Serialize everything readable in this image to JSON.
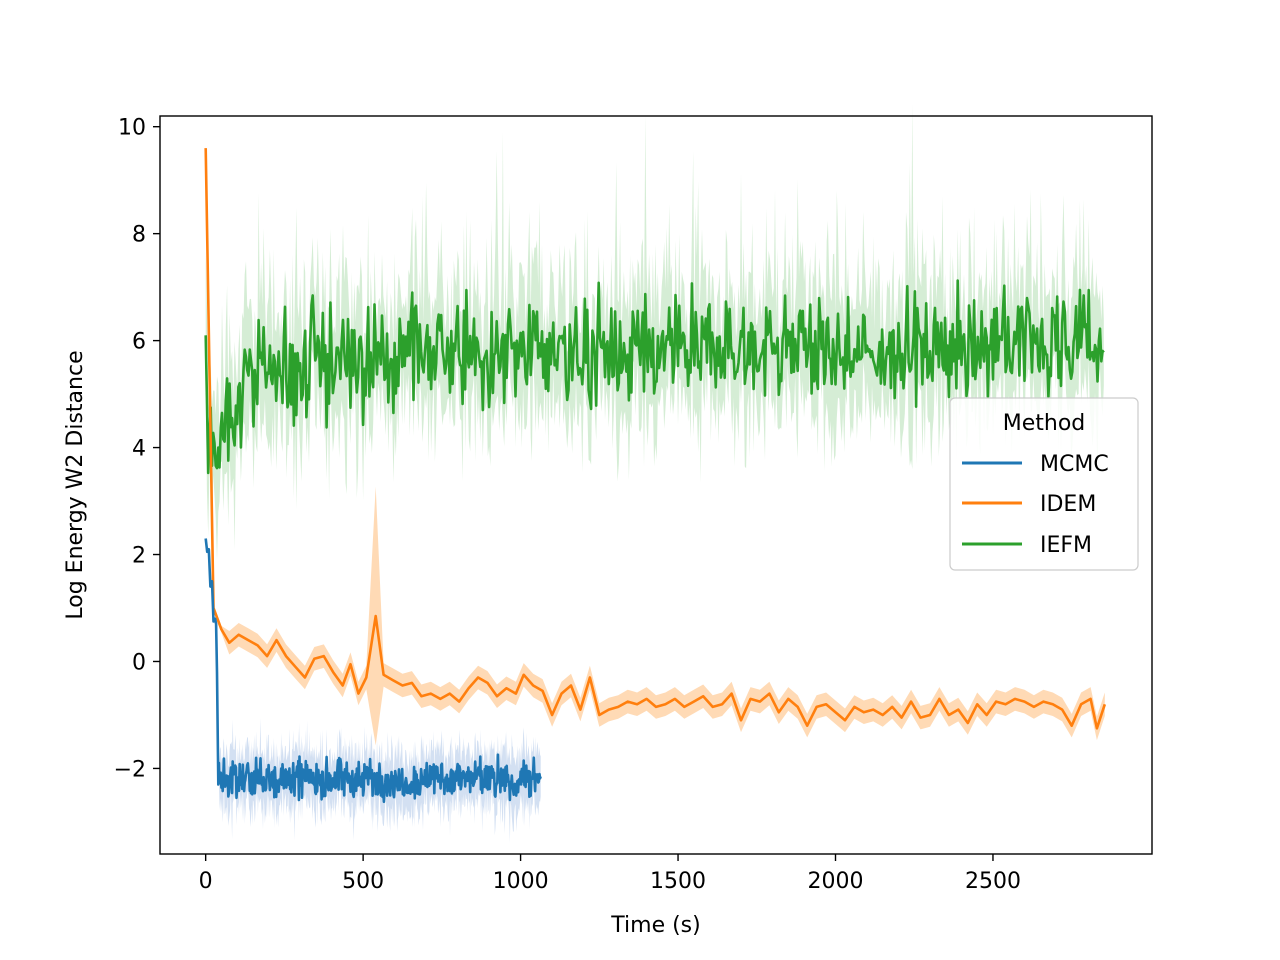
{
  "chart_data": {
    "type": "line",
    "title": "",
    "xlabel": "Time (s)",
    "ylabel": "Log Energy W2 Distance",
    "xlim": [
      -145,
      3005
    ],
    "ylim": [
      -3.6,
      10.2
    ],
    "xticks": [
      0,
      500,
      1000,
      1500,
      2000,
      2500
    ],
    "yticks": [
      -2,
      0,
      2,
      4,
      6,
      8,
      10
    ],
    "xtick_labels": [
      "0",
      "500",
      "1000",
      "1500",
      "2000",
      "2500"
    ],
    "ytick_labels": [
      "−2",
      "0",
      "2",
      "4",
      "6",
      "8",
      "10"
    ],
    "grid": false,
    "legend": {
      "title": "Method",
      "placement": "center-right"
    },
    "series": [
      {
        "name": "MCMC",
        "color": "#1f77b4",
        "band_color": "#aec7e8",
        "description": "steps down from ~2.3 to ~-2.2 by t=40s, then noisy plateau until ~1065s",
        "points": [
          [
            0,
            2.3
          ],
          [
            5,
            2.05
          ],
          [
            10,
            2.1
          ],
          [
            15,
            1.4
          ],
          [
            20,
            1.5
          ],
          [
            25,
            0.75
          ],
          [
            30,
            0.8
          ],
          [
            33,
            0.7
          ],
          [
            36,
            -0.2
          ],
          [
            40,
            -2.3
          ]
        ],
        "plateau": {
          "x_start": 40,
          "x_end": 1065,
          "mean": -2.2,
          "noise": 0.22,
          "band": 0.35
        }
      },
      {
        "name": "IDEM",
        "color": "#ff7f0e",
        "band_color": "#ffbb78",
        "points": [
          [
            0,
            9.6
          ],
          [
            25,
            1.0
          ],
          [
            50,
            0.6
          ],
          [
            75,
            0.35
          ],
          [
            105,
            0.5
          ],
          [
            135,
            0.4
          ],
          [
            165,
            0.3
          ],
          [
            195,
            0.1
          ],
          [
            225,
            0.4
          ],
          [
            255,
            0.1
          ],
          [
            285,
            -0.1
          ],
          [
            315,
            -0.3
          ],
          [
            345,
            0.05
          ],
          [
            375,
            0.1
          ],
          [
            405,
            -0.2
          ],
          [
            435,
            -0.45
          ],
          [
            460,
            -0.05
          ],
          [
            485,
            -0.6
          ],
          [
            510,
            -0.3
          ],
          [
            540,
            0.85
          ],
          [
            565,
            -0.25
          ],
          [
            595,
            -0.35
          ],
          [
            625,
            -0.45
          ],
          [
            655,
            -0.4
          ],
          [
            685,
            -0.65
          ],
          [
            715,
            -0.6
          ],
          [
            745,
            -0.7
          ],
          [
            775,
            -0.6
          ],
          [
            805,
            -0.75
          ],
          [
            835,
            -0.5
          ],
          [
            865,
            -0.3
          ],
          [
            895,
            -0.4
          ],
          [
            925,
            -0.65
          ],
          [
            955,
            -0.5
          ],
          [
            985,
            -0.6
          ],
          [
            1010,
            -0.25
          ],
          [
            1040,
            -0.45
          ],
          [
            1070,
            -0.55
          ],
          [
            1100,
            -1.0
          ],
          [
            1130,
            -0.6
          ],
          [
            1160,
            -0.45
          ],
          [
            1190,
            -0.9
          ],
          [
            1220,
            -0.3
          ],
          [
            1250,
            -1.0
          ],
          [
            1280,
            -0.9
          ],
          [
            1310,
            -0.85
          ],
          [
            1340,
            -0.75
          ],
          [
            1370,
            -0.8
          ],
          [
            1400,
            -0.7
          ],
          [
            1430,
            -0.85
          ],
          [
            1460,
            -0.8
          ],
          [
            1490,
            -0.7
          ],
          [
            1520,
            -0.85
          ],
          [
            1550,
            -0.75
          ],
          [
            1580,
            -0.65
          ],
          [
            1610,
            -0.85
          ],
          [
            1640,
            -0.8
          ],
          [
            1670,
            -0.6
          ],
          [
            1700,
            -1.1
          ],
          [
            1730,
            -0.7
          ],
          [
            1760,
            -0.75
          ],
          [
            1790,
            -0.6
          ],
          [
            1820,
            -0.95
          ],
          [
            1850,
            -0.7
          ],
          [
            1880,
            -0.85
          ],
          [
            1910,
            -1.2
          ],
          [
            1940,
            -0.85
          ],
          [
            1970,
            -0.8
          ],
          [
            2000,
            -0.95
          ],
          [
            2030,
            -1.1
          ],
          [
            2060,
            -0.85
          ],
          [
            2090,
            -0.95
          ],
          [
            2120,
            -0.9
          ],
          [
            2150,
            -1.0
          ],
          [
            2180,
            -0.85
          ],
          [
            2210,
            -1.05
          ],
          [
            2240,
            -0.75
          ],
          [
            2270,
            -1.05
          ],
          [
            2300,
            -1.0
          ],
          [
            2330,
            -0.7
          ],
          [
            2360,
            -1.0
          ],
          [
            2390,
            -0.9
          ],
          [
            2420,
            -1.15
          ],
          [
            2450,
            -0.8
          ],
          [
            2480,
            -1.0
          ],
          [
            2510,
            -0.75
          ],
          [
            2540,
            -0.8
          ],
          [
            2570,
            -0.7
          ],
          [
            2600,
            -0.75
          ],
          [
            2630,
            -0.85
          ],
          [
            2660,
            -0.75
          ],
          [
            2690,
            -0.8
          ],
          [
            2720,
            -0.9
          ],
          [
            2750,
            -1.2
          ],
          [
            2780,
            -0.8
          ],
          [
            2810,
            -0.7
          ],
          [
            2830,
            -1.25
          ],
          [
            2855,
            -0.8
          ]
        ],
        "band_halfwidth": 0.22
      },
      {
        "name": "IEFM",
        "color": "#2ca02c",
        "band_color": "#b3dfb3",
        "points": [
          [
            0,
            6.1
          ],
          [
            8,
            3.7
          ],
          [
            20,
            4.3
          ],
          [
            40,
            4.0
          ],
          [
            60,
            4.5
          ],
          [
            90,
            4.4
          ],
          [
            120,
            5.0
          ],
          [
            150,
            5.2
          ],
          [
            200,
            5.5
          ],
          [
            250,
            5.3
          ],
          [
            300,
            5.4
          ],
          [
            350,
            5.5
          ],
          [
            400,
            5.6
          ],
          [
            450,
            5.9
          ],
          [
            500,
            5.6
          ],
          [
            600,
            5.7
          ],
          [
            700,
            5.8
          ],
          [
            800,
            5.7
          ],
          [
            900,
            5.8
          ],
          [
            1000,
            5.9
          ],
          [
            1200,
            5.8
          ],
          [
            1400,
            5.8
          ],
          [
            1600,
            5.9
          ],
          [
            1800,
            5.9
          ],
          [
            2000,
            5.8
          ],
          [
            2200,
            5.8
          ],
          [
            2400,
            5.9
          ],
          [
            2600,
            6.0
          ],
          [
            2800,
            6.0
          ],
          [
            2855,
            6.1
          ]
        ],
        "noise": 0.55,
        "band_halfwidth": 0.6
      }
    ]
  }
}
